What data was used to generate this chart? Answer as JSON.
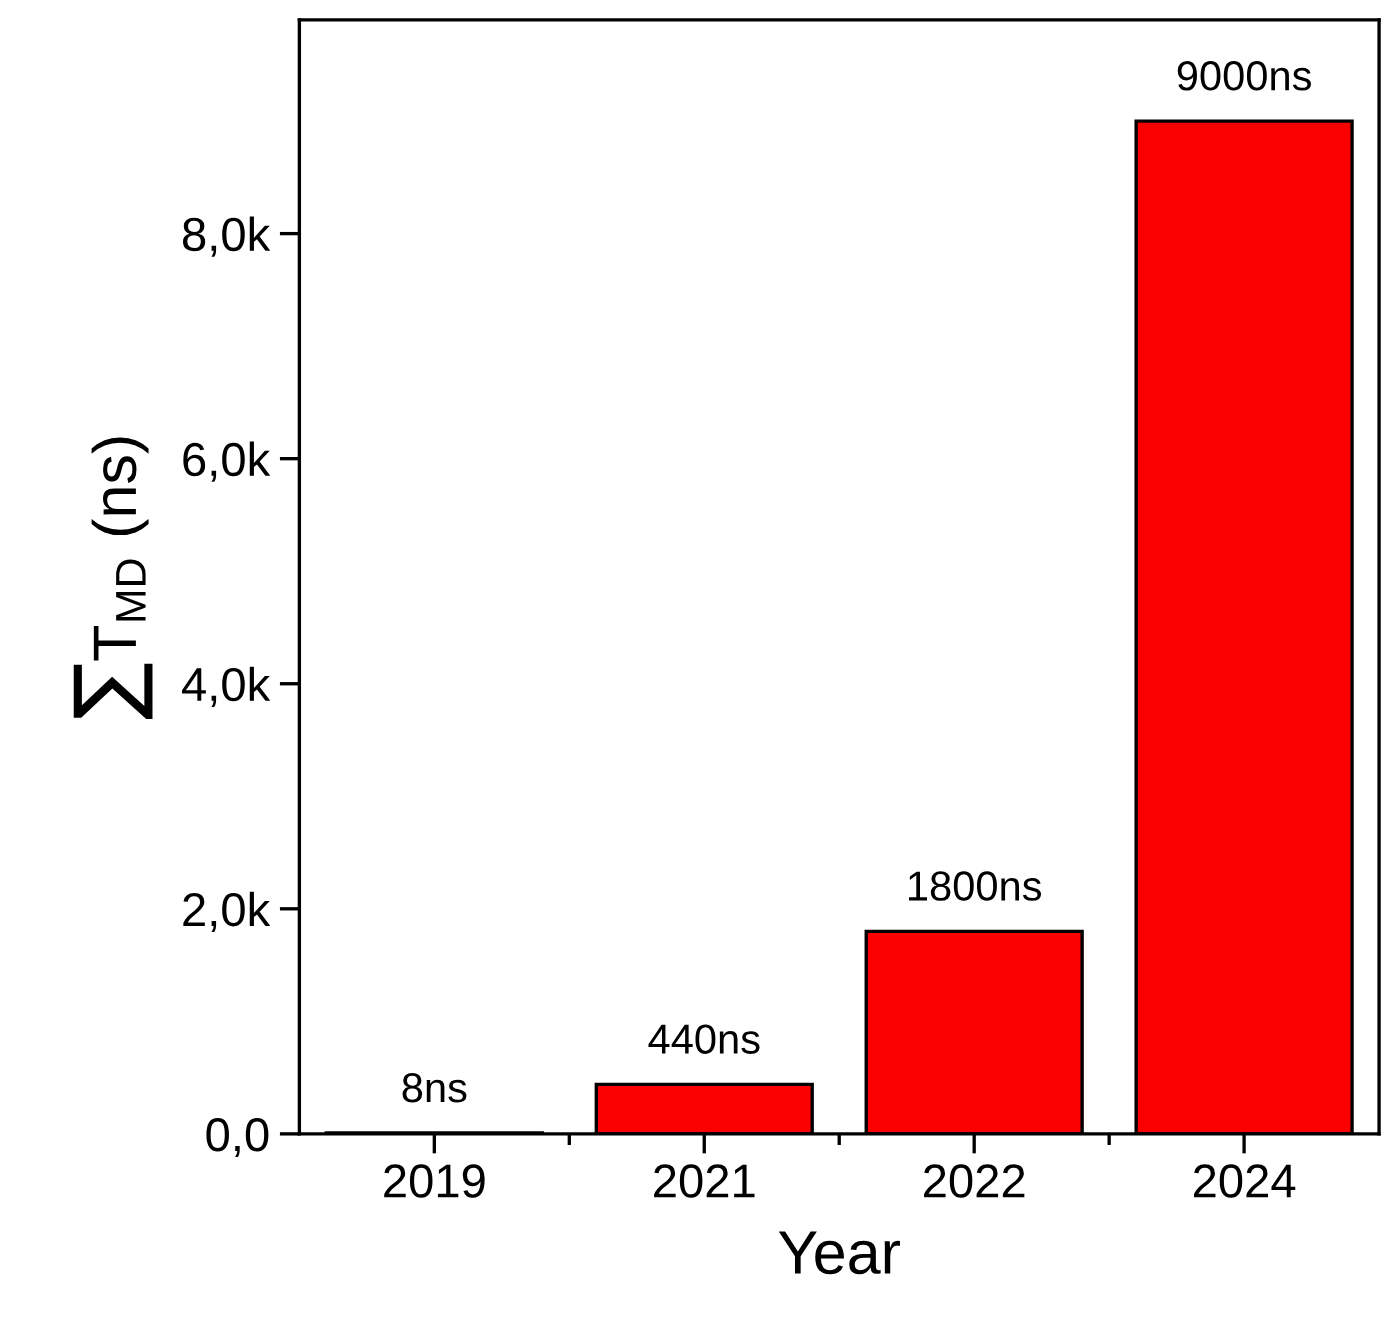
{
  "chart_data": {
    "type": "bar",
    "xlabel": "Year",
    "ylabel": "∑T$_{MD}$ (ns)",
    "categories": [
      "2019",
      "2021",
      "2022",
      "2024"
    ],
    "values": [
      8,
      440,
      1800,
      9000
    ],
    "value_labels": [
      "8ns",
      "440ns",
      "1800ns",
      "9000ns"
    ],
    "color": "#fa0000",
    "ylim": [
      0,
      9900
    ],
    "yticks": [
      {
        "value": 0,
        "label": "0,0"
      },
      {
        "value": 2000,
        "label": "2,0k"
      },
      {
        "value": 4000,
        "label": "4,0k"
      },
      {
        "value": 6000,
        "label": "6,0k"
      },
      {
        "value": 8000,
        "label": "8,0k"
      }
    ],
    "grid": false
  }
}
